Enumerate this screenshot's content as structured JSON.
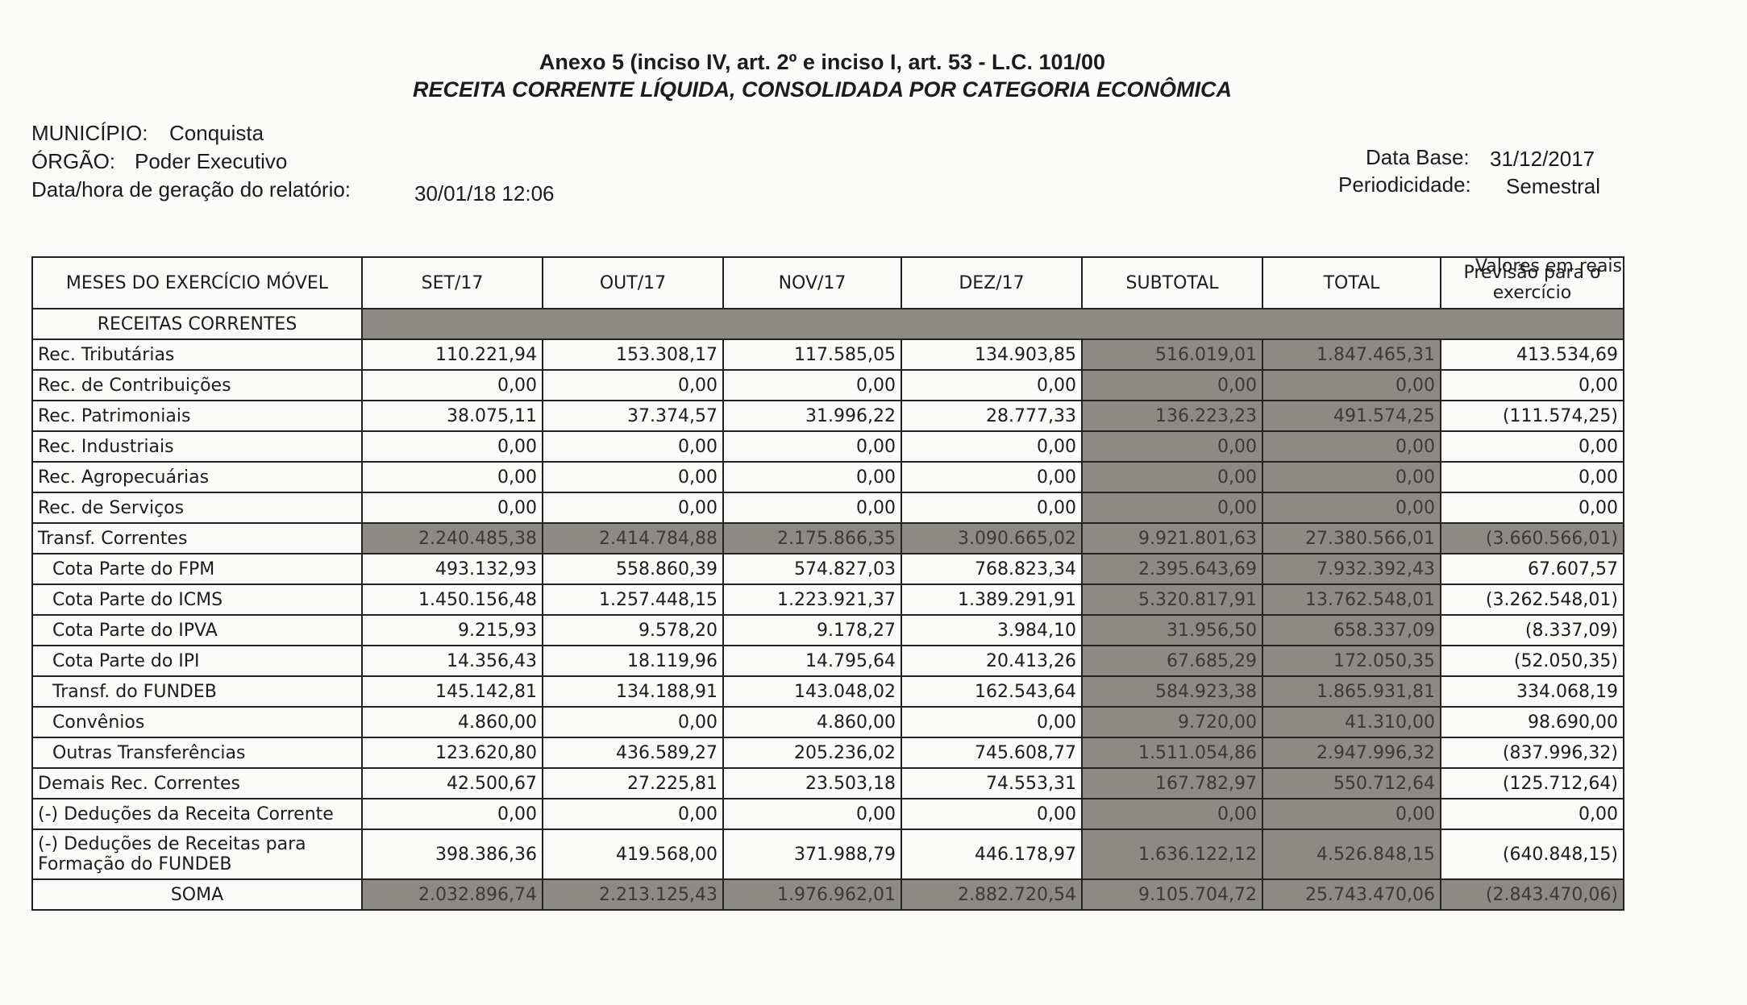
{
  "header": {
    "line1": "Anexo 5 (inciso IV, art. 2º e inciso I, art. 53 - L.C. 101/00",
    "line2": "RECEITA CORRENTE LÍQUIDA, CONSOLIDADA POR CATEGORIA ECONÔMICA"
  },
  "info": {
    "municipio": {
      "label": "MUNICÍPIO:",
      "value": "Conquista"
    },
    "orgao": {
      "label": "ÓRGÃO:",
      "value": "Poder Executivo"
    },
    "data_hora": {
      "label": "Data/hora de geração do relatório:",
      "value": "30/01/18 12:06"
    },
    "data_base": {
      "label": "Data Base:",
      "value": "31/12/2017"
    },
    "periodicidade": {
      "label": "Periodicidade:",
      "value": "Semestral"
    }
  },
  "table": {
    "unit": "Valores em reais",
    "columns": [
      "MESES DO EXERCÍCIO MÓVEL",
      "SET/17",
      "OUT/17",
      "NOV/17",
      "DEZ/17",
      "SUBTOTAL",
      "TOTAL",
      "Previsão para o exercício"
    ],
    "section": "RECEITAS CORRENTES",
    "rows": [
      [
        "Rec. Tributárias",
        "110.221,94",
        "153.308,17",
        "117.585,05",
        "134.903,85",
        "516.019,01",
        "1.847.465,31",
        "413.534,69"
      ],
      [
        "Rec. de Contribuições",
        "0,00",
        "0,00",
        "0,00",
        "0,00",
        "0,00",
        "0,00",
        "0,00"
      ],
      [
        "Rec. Patrimoniais",
        "38.075,11",
        "37.374,57",
        "31.996,22",
        "28.777,33",
        "136.223,23",
        "491.574,25",
        "(111.574,25)"
      ],
      [
        "Rec. Industriais",
        "0,00",
        "0,00",
        "0,00",
        "0,00",
        "0,00",
        "0,00",
        "0,00"
      ],
      [
        "Rec. Agropecuárias",
        "0,00",
        "0,00",
        "0,00",
        "0,00",
        "0,00",
        "0,00",
        "0,00"
      ],
      [
        "Rec. de Serviços",
        "0,00",
        "0,00",
        "0,00",
        "0,00",
        "0,00",
        "0,00",
        "0,00"
      ],
      [
        "Transf. Correntes",
        "2.240.485,38",
        "2.414.784,88",
        "2.175.866,35",
        "3.090.665,02",
        "9.921.801,63",
        "27.380.566,01",
        "(3.660.566,01)"
      ],
      [
        "Cota Parte do FPM",
        "493.132,93",
        "558.860,39",
        "574.827,03",
        "768.823,34",
        "2.395.643,69",
        "7.932.392,43",
        "67.607,57"
      ],
      [
        "Cota Parte do ICMS",
        "1.450.156,48",
        "1.257.448,15",
        "1.223.921,37",
        "1.389.291,91",
        "5.320.817,91",
        "13.762.548,01",
        "(3.262.548,01)"
      ],
      [
        "Cota Parte do IPVA",
        "9.215,93",
        "9.578,20",
        "9.178,27",
        "3.984,10",
        "31.956,50",
        "658.337,09",
        "(8.337,09)"
      ],
      [
        "Cota Parte do IPI",
        "14.356,43",
        "18.119,96",
        "14.795,64",
        "20.413,26",
        "67.685,29",
        "172.050,35",
        "(52.050,35)"
      ],
      [
        "Transf. do FUNDEB",
        "145.142,81",
        "134.188,91",
        "143.048,02",
        "162.543,64",
        "584.923,38",
        "1.865.931,81",
        "334.068,19"
      ],
      [
        "Convênios",
        "4.860,00",
        "0,00",
        "4.860,00",
        "0,00",
        "9.720,00",
        "41.310,00",
        "98.690,00"
      ],
      [
        "Outras Transferências",
        "123.620,80",
        "436.589,27",
        "205.236,02",
        "745.608,77",
        "1.511.054,86",
        "2.947.996,32",
        "(837.996,32)"
      ],
      [
        "Demais Rec. Correntes",
        "42.500,67",
        "27.225,81",
        "23.503,18",
        "74.553,31",
        "167.782,97",
        "550.712,64",
        "(125.712,64)"
      ],
      [
        "(-) Deduções da Receita Corrente",
        "0,00",
        "0,00",
        "0,00",
        "0,00",
        "0,00",
        "0,00",
        "0,00"
      ],
      [
        "(-) Deduções de Receitas para Formação do FUNDEB",
        "398.386,36",
        "419.568,00",
        "371.988,79",
        "446.178,97",
        "1.636.122,12",
        "4.526.848,15",
        "(640.848,15)"
      ],
      [
        "SOMA",
        "2.032.896,74",
        "2.213.125,43",
        "1.976.962,01",
        "2.882.720,54",
        "9.105.704,72",
        "25.743.470,06",
        "(2.843.470,06)"
      ]
    ]
  }
}
